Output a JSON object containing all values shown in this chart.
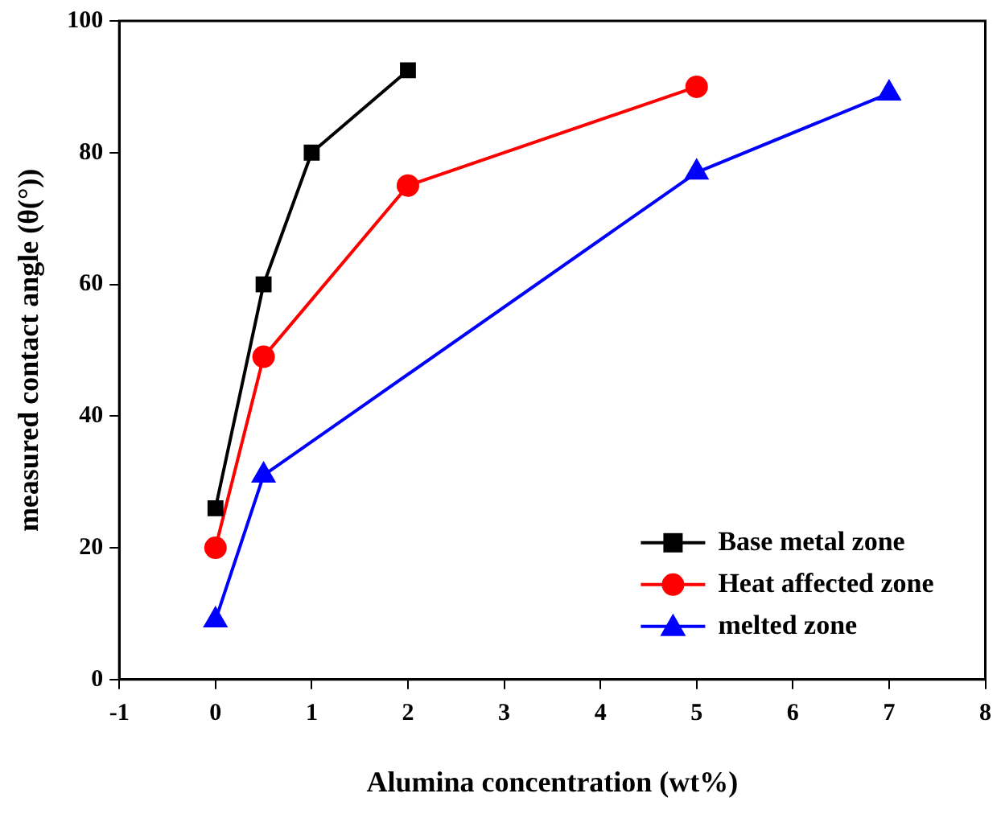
{
  "chart_data": {
    "type": "line",
    "xlabel": "Alumina concentration (wt%)",
    "ylabel": "measured contact angle (θ(°))",
    "xlim": [
      -1,
      8
    ],
    "xticks": [
      -1,
      0,
      1,
      2,
      3,
      4,
      5,
      6,
      7,
      8
    ],
    "ylim": [
      0,
      100
    ],
    "yticks": [
      0,
      20,
      40,
      60,
      80,
      100
    ],
    "grid": false,
    "legend": "bottom right",
    "line_style": "solid",
    "series": [
      {
        "name": "Base metal zone",
        "color": "#000000",
        "marker": "square",
        "x": [
          0,
          0.5,
          1,
          2
        ],
        "values": [
          26,
          60,
          80,
          92.5
        ]
      },
      {
        "name": "Heat affected zone",
        "color": "#ff0000",
        "marker": "circle",
        "x": [
          0,
          0.5,
          2,
          5
        ],
        "values": [
          20,
          49,
          75,
          90
        ]
      },
      {
        "name": "melted zone",
        "color": "#0000ff",
        "marker": "triangle",
        "x": [
          0,
          0.5,
          5,
          7
        ],
        "values": [
          9,
          31,
          77,
          89
        ]
      }
    ]
  }
}
